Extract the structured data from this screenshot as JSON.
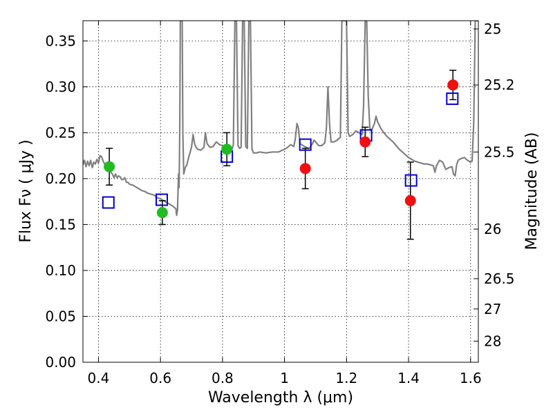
{
  "chart_data": {
    "type": "scatter",
    "xlabel": "Wavelength  λ (μm)",
    "ylabel": "Flux  Fν  ( μJy )",
    "y2label": "Magnitude (AB)",
    "xlim": [
      0.35,
      1.625
    ],
    "ylim": [
      0.0,
      0.372
    ],
    "grid": true,
    "x_ticks": [
      0.4,
      0.6,
      0.8,
      1.0,
      1.2,
      1.4,
      1.6
    ],
    "x_tick_labels": [
      "0.4",
      "0.6",
      "0.8",
      "1",
      "1.2",
      "1.4",
      "1.6"
    ],
    "y_ticks": [
      0.0,
      0.05,
      0.1,
      0.15,
      0.2,
      0.25,
      0.3,
      0.35
    ],
    "y_tick_labels": [
      "0.00",
      "0.05",
      "0.10",
      "0.15",
      "0.20",
      "0.25",
      "0.30",
      "0.35"
    ],
    "y2_ticks": [
      {
        "label": "25",
        "flux": 0.363
      },
      {
        "label": "25.2",
        "flux": 0.302
      },
      {
        "label": "25.5",
        "flux": 0.229
      },
      {
        "label": "26",
        "flux": 0.145
      },
      {
        "label": "26.5",
        "flux": 0.091
      },
      {
        "label": "27",
        "flux": 0.058
      },
      {
        "label": "28",
        "flux": 0.023
      }
    ],
    "colors": {
      "green": "#22bb22",
      "red": "#ee1111",
      "model": "#808080",
      "box": "#0000cc",
      "error": "#000000"
    },
    "observed": [
      {
        "x": 0.435,
        "y": 0.213,
        "err": 0.02,
        "color": "green"
      },
      {
        "x": 0.606,
        "y": 0.163,
        "err": 0.013,
        "color": "green"
      },
      {
        "x": 0.814,
        "y": 0.232,
        "err": 0.018,
        "color": "green"
      },
      {
        "x": 1.067,
        "y": 0.211,
        "err": 0.022,
        "color": "red"
      },
      {
        "x": 1.26,
        "y": 0.24,
        "err": 0.016,
        "color": "red"
      },
      {
        "x": 1.406,
        "y": 0.176,
        "err": 0.042,
        "color": "red"
      },
      {
        "x": 1.543,
        "y": 0.302,
        "err": 0.016,
        "color": "red"
      }
    ],
    "model_photometry": [
      {
        "x": 0.432,
        "y": 0.174
      },
      {
        "x": 0.604,
        "y": 0.177
      },
      {
        "x": 0.814,
        "y": 0.224
      },
      {
        "x": 1.067,
        "y": 0.237
      },
      {
        "x": 1.263,
        "y": 0.247
      },
      {
        "x": 1.408,
        "y": 0.198
      },
      {
        "x": 1.541,
        "y": 0.287
      }
    ],
    "model_spectrum": [
      [
        0.35,
        0.215
      ],
      [
        0.355,
        0.22
      ],
      [
        0.36,
        0.213
      ],
      [
        0.365,
        0.219
      ],
      [
        0.37,
        0.214
      ],
      [
        0.375,
        0.22
      ],
      [
        0.38,
        0.212
      ],
      [
        0.385,
        0.218
      ],
      [
        0.39,
        0.216
      ],
      [
        0.395,
        0.221
      ],
      [
        0.4,
        0.217
      ],
      [
        0.405,
        0.225
      ],
      [
        0.41,
        0.224
      ],
      [
        0.415,
        0.219
      ],
      [
        0.42,
        0.216
      ],
      [
        0.425,
        0.214
      ],
      [
        0.43,
        0.212
      ],
      [
        0.435,
        0.213
      ],
      [
        0.44,
        0.207
      ],
      [
        0.445,
        0.205
      ],
      [
        0.45,
        0.201
      ],
      [
        0.455,
        0.205
      ],
      [
        0.46,
        0.201
      ],
      [
        0.465,
        0.203
      ],
      [
        0.47,
        0.202
      ],
      [
        0.475,
        0.199
      ],
      [
        0.48,
        0.199
      ],
      [
        0.485,
        0.201
      ],
      [
        0.49,
        0.196
      ],
      [
        0.495,
        0.196
      ],
      [
        0.5,
        0.194
      ],
      [
        0.51,
        0.193
      ],
      [
        0.52,
        0.191
      ],
      [
        0.53,
        0.189
      ],
      [
        0.54,
        0.187
      ],
      [
        0.55,
        0.186
      ],
      [
        0.56,
        0.184
      ],
      [
        0.57,
        0.183
      ],
      [
        0.58,
        0.182
      ],
      [
        0.59,
        0.179
      ],
      [
        0.6,
        0.178
      ],
      [
        0.61,
        0.176
      ],
      [
        0.62,
        0.174
      ],
      [
        0.63,
        0.172
      ],
      [
        0.64,
        0.17
      ],
      [
        0.65,
        0.167
      ],
      [
        0.652,
        0.16
      ],
      [
        0.655,
        0.166
      ],
      [
        0.658,
        0.205
      ],
      [
        0.66,
        0.19
      ],
      [
        0.662,
        0.25
      ],
      [
        0.664,
        0.372
      ],
      [
        0.666,
        0.372
      ],
      [
        0.668,
        0.372
      ],
      [
        0.67,
        0.372
      ],
      [
        0.672,
        0.25
      ],
      [
        0.675,
        0.205
      ],
      [
        0.68,
        0.212
      ],
      [
        0.685,
        0.215
      ],
      [
        0.69,
        0.222
      ],
      [
        0.695,
        0.228
      ],
      [
        0.7,
        0.234
      ],
      [
        0.705,
        0.248
      ],
      [
        0.71,
        0.238
      ],
      [
        0.715,
        0.234
      ],
      [
        0.72,
        0.232
      ],
      [
        0.73,
        0.231
      ],
      [
        0.74,
        0.234
      ],
      [
        0.745,
        0.25
      ],
      [
        0.75,
        0.238
      ],
      [
        0.76,
        0.234
      ],
      [
        0.77,
        0.235
      ],
      [
        0.78,
        0.24
      ],
      [
        0.79,
        0.237
      ],
      [
        0.8,
        0.236
      ],
      [
        0.81,
        0.236
      ],
      [
        0.815,
        0.232
      ],
      [
        0.82,
        0.233
      ],
      [
        0.83,
        0.231
      ],
      [
        0.835,
        0.237
      ],
      [
        0.84,
        0.372
      ],
      [
        0.845,
        0.372
      ],
      [
        0.85,
        0.236
      ],
      [
        0.855,
        0.233
      ],
      [
        0.86,
        0.234
      ],
      [
        0.865,
        0.372
      ],
      [
        0.87,
        0.372
      ],
      [
        0.875,
        0.235
      ],
      [
        0.88,
        0.233
      ],
      [
        0.885,
        0.372
      ],
      [
        0.89,
        0.372
      ],
      [
        0.895,
        0.232
      ],
      [
        0.9,
        0.228
      ],
      [
        0.91,
        0.228
      ],
      [
        0.92,
        0.229
      ],
      [
        0.94,
        0.228
      ],
      [
        0.96,
        0.229
      ],
      [
        0.98,
        0.229
      ],
      [
        1.0,
        0.232
      ],
      [
        1.01,
        0.234
      ],
      [
        1.02,
        0.237
      ],
      [
        1.03,
        0.235
      ],
      [
        1.035,
        0.244
      ],
      [
        1.04,
        0.26
      ],
      [
        1.045,
        0.255
      ],
      [
        1.05,
        0.238
      ],
      [
        1.06,
        0.236
      ],
      [
        1.07,
        0.234
      ],
      [
        1.08,
        0.233
      ],
      [
        1.09,
        0.238
      ],
      [
        1.095,
        0.242
      ],
      [
        1.1,
        0.24
      ],
      [
        1.11,
        0.236
      ],
      [
        1.12,
        0.236
      ],
      [
        1.13,
        0.239
      ],
      [
        1.135,
        0.255
      ],
      [
        1.14,
        0.3
      ],
      [
        1.145,
        0.26
      ],
      [
        1.15,
        0.24
      ],
      [
        1.16,
        0.24
      ],
      [
        1.17,
        0.242
      ],
      [
        1.18,
        0.245
      ],
      [
        1.185,
        0.372
      ],
      [
        1.19,
        0.372
      ],
      [
        1.195,
        0.372
      ],
      [
        1.2,
        0.372
      ],
      [
        1.205,
        0.25
      ],
      [
        1.21,
        0.246
      ],
      [
        1.22,
        0.248
      ],
      [
        1.23,
        0.252
      ],
      [
        1.24,
        0.25
      ],
      [
        1.25,
        0.248
      ],
      [
        1.255,
        0.28
      ],
      [
        1.26,
        0.372
      ],
      [
        1.265,
        0.372
      ],
      [
        1.27,
        0.29
      ],
      [
        1.275,
        0.255
      ],
      [
        1.28,
        0.252
      ],
      [
        1.29,
        0.26
      ],
      [
        1.295,
        0.268
      ],
      [
        1.3,
        0.262
      ],
      [
        1.31,
        0.255
      ],
      [
        1.32,
        0.25
      ],
      [
        1.33,
        0.246
      ],
      [
        1.34,
        0.243
      ],
      [
        1.35,
        0.24
      ],
      [
        1.36,
        0.236
      ],
      [
        1.37,
        0.232
      ],
      [
        1.38,
        0.229
      ],
      [
        1.39,
        0.226
      ],
      [
        1.4,
        0.223
      ],
      [
        1.41,
        0.221
      ],
      [
        1.42,
        0.219
      ],
      [
        1.43,
        0.218
      ],
      [
        1.44,
        0.217
      ],
      [
        1.45,
        0.216
      ],
      [
        1.46,
        0.216
      ],
      [
        1.47,
        0.215
      ],
      [
        1.48,
        0.214
      ],
      [
        1.485,
        0.207
      ],
      [
        1.49,
        0.214
      ],
      [
        1.5,
        0.22
      ],
      [
        1.51,
        0.218
      ],
      [
        1.52,
        0.21
      ],
      [
        1.53,
        0.212
      ],
      [
        1.54,
        0.213
      ],
      [
        1.545,
        0.205
      ],
      [
        1.55,
        0.203
      ],
      [
        1.555,
        0.215
      ],
      [
        1.56,
        0.22
      ],
      [
        1.57,
        0.222
      ],
      [
        1.58,
        0.223
      ],
      [
        1.59,
        0.22
      ],
      [
        1.6,
        0.218
      ],
      [
        1.605,
        0.219
      ],
      [
        1.61,
        0.26
      ],
      [
        1.615,
        0.372
      ],
      [
        1.62,
        0.372
      ],
      [
        1.625,
        0.372
      ]
    ]
  }
}
